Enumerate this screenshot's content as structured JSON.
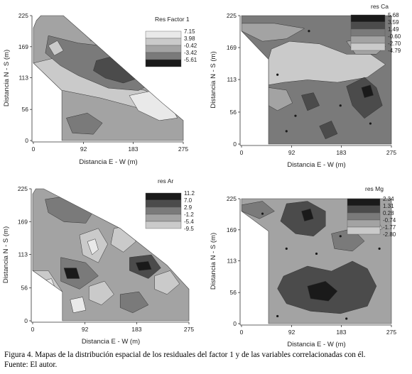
{
  "caption": {
    "line1": "Figura 4. Mapas de la distribución espacial de los residuales del factor 1 y de las variables correlacionadas con él.",
    "line2": "Fuente: El autor."
  },
  "colors": {
    "background": "#ffffff",
    "shades": [
      "#1a1a1a",
      "#4b4b4b",
      "#7a7a7a",
      "#a3a3a3",
      "#cacaca",
      "#e9e9e9"
    ]
  },
  "chart_data": [
    {
      "type": "contour-map",
      "legend_title": "Res Factor 1",
      "legend_levels": [
        "7.15",
        "3.98",
        "-0.42",
        "-3.42",
        "-5.61"
      ],
      "xlabel": "Distancia E - W (m)",
      "ylabel": "Distancia N - S (m)",
      "x_ticks": [
        0,
        92,
        183,
        275
      ],
      "y_ticks": [
        0,
        56,
        113,
        169,
        225
      ],
      "xlim": [
        0,
        275
      ],
      "ylim": [
        0,
        225
      ]
    },
    {
      "type": "contour-map",
      "legend_title": "res Ca",
      "legend_levels": [
        "5.68",
        "3.59",
        "1.49",
        "-0.60",
        "-2.70",
        "-4.79"
      ],
      "xlabel": "Distancia E - W (m)",
      "ylabel": "Distancia N - S (m)",
      "x_ticks": [
        0,
        92,
        183,
        275
      ],
      "y_ticks": [
        0,
        56,
        113,
        169,
        225
      ],
      "xlim": [
        0,
        275
      ],
      "ylim": [
        0,
        225
      ]
    },
    {
      "type": "contour-map",
      "legend_title": "res Ar",
      "legend_levels": [
        "11.2",
        "7.0",
        "2.9",
        "-1.2",
        "-5.4",
        "-9.5"
      ],
      "xlabel": "Distancia E - W (m)",
      "ylabel": "Distancia N - S (m)",
      "x_ticks": [
        0,
        92,
        183,
        275
      ],
      "y_ticks": [
        0,
        56,
        113,
        169,
        225
      ],
      "xlim": [
        0,
        275
      ],
      "ylim": [
        0,
        225
      ]
    },
    {
      "type": "contour-map",
      "legend_title": "res Mg",
      "legend_levels": [
        "2.34",
        "1.31",
        "0.28",
        "-0.74",
        "-1.77",
        "-2.80"
      ],
      "xlabel": "Distancia E - W (m)",
      "ylabel": "Distancia N - S (m)",
      "x_ticks": [
        0,
        92,
        183,
        275
      ],
      "y_ticks": [
        0,
        56,
        113,
        169,
        225
      ],
      "xlim": [
        0,
        275
      ],
      "ylim": [
        0,
        225
      ]
    }
  ]
}
